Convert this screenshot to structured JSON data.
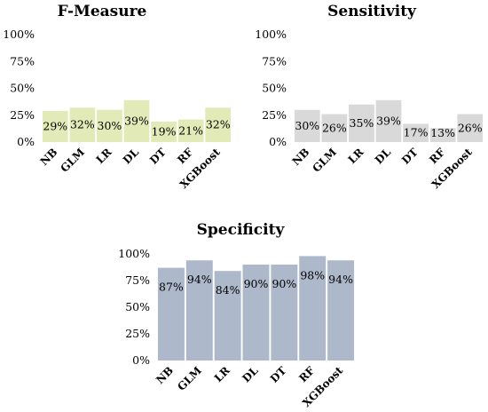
{
  "chart_data": [
    {
      "type": "bar",
      "title": "F-Measure",
      "categories": [
        "NB",
        "GLM",
        "LR",
        "DL",
        "DT",
        "RF",
        "XGBoost"
      ],
      "values": [
        29,
        32,
        30,
        39,
        19,
        21,
        32
      ],
      "data_labels": [
        "29%",
        "32%",
        "30%",
        "39%",
        "19%",
        "21%",
        "32%"
      ],
      "yticks": [
        "0%",
        "25%",
        "50%",
        "75%",
        "100%"
      ],
      "ylim": [
        0,
        100
      ],
      "color": "#e2ebb8",
      "grid": false
    },
    {
      "type": "bar",
      "title": "Sensitivity",
      "categories": [
        "NB",
        "GLM",
        "LR",
        "DL",
        "DT",
        "RF",
        "XGBoost"
      ],
      "values": [
        30,
        26,
        35,
        39,
        17,
        13,
        26
      ],
      "data_labels": [
        "30%",
        "26%",
        "35%",
        "39%",
        "17%",
        "13%",
        "26%"
      ],
      "yticks": [
        "0%",
        "25%",
        "50%",
        "75%",
        "100%"
      ],
      "ylim": [
        0,
        100
      ],
      "color": "#d9d9d9",
      "grid": false
    },
    {
      "type": "bar",
      "title": "Specificity",
      "categories": [
        "NB",
        "GLM",
        "LR",
        "DL",
        "DT",
        "RF",
        "XGBoost"
      ],
      "values": [
        87,
        94,
        84,
        90,
        90,
        98,
        94
      ],
      "data_labels": [
        "87%",
        "94%",
        "84%",
        "90%",
        "90%",
        "98%",
        "94%"
      ],
      "yticks": [
        "0%",
        "25%",
        "50%",
        "75%",
        "100%"
      ],
      "ylim": [
        0,
        100
      ],
      "color": "#adb8ca",
      "grid": false
    }
  ]
}
